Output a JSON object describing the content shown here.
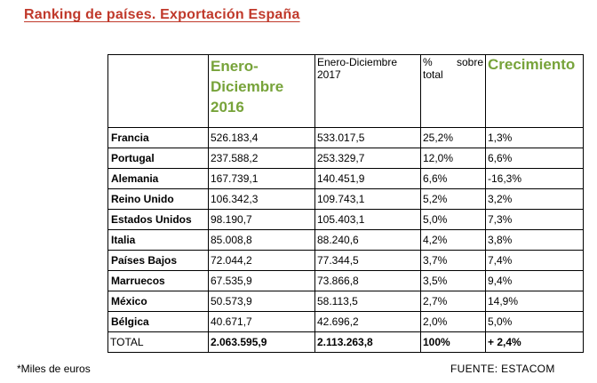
{
  "title": "Ranking de países. Exportación España",
  "headers": {
    "col_2016": "Enero-Diciembre 2016",
    "col_2017": "Enero-Diciembre 2017",
    "col_pct_a": "%",
    "col_pct_b": "sobre",
    "col_pct_c": "total",
    "col_growth": "Crecimiento"
  },
  "rows": [
    {
      "country": "Francia",
      "v2016": "526.183,4",
      "v2017": "533.017,5",
      "pct": "25,2%",
      "growth": "1,3%"
    },
    {
      "country": "Portugal",
      "v2016": "237.588,2",
      "v2017": "253.329,7",
      "pct": "12,0%",
      "growth": "6,6%"
    },
    {
      "country": "Alemania",
      "v2016": "167.739,1",
      "v2017": "140.451,9",
      "pct": "6,6%",
      "growth": "-16,3%"
    },
    {
      "country": "Reino Unido",
      "v2016": "106.342,3",
      "v2017": "109.743,1",
      "pct": "5,2%",
      "growth": "3,2%"
    },
    {
      "country": "Estados Unidos",
      "v2016": "98.190,7",
      "v2017": "105.403,1",
      "pct": "5,0%",
      "growth": "7,3%"
    },
    {
      "country": "Italia",
      "v2016": "85.008,8",
      "v2017": "88.240,6",
      "pct": "4,2%",
      "growth": "3,8%"
    },
    {
      "country": "Países Bajos",
      "v2016": "72.044,2",
      "v2017": "77.344,5",
      "pct": "3,7%",
      "growth": "7,4%"
    },
    {
      "country": "Marruecos",
      "v2016": "67.535,9",
      "v2017": "73.866,8",
      "pct": "3,5%",
      "growth": "9,4%"
    },
    {
      "country": "México",
      "v2016": "50.573,9",
      "v2017": "58.113,5",
      "pct": "2,7%",
      "growth": "14,9%"
    },
    {
      "country": "Bélgica",
      "v2016": "40.671,7",
      "v2017": "42.696,2",
      "pct": "2,0%",
      "growth": "5,0%"
    }
  ],
  "total": {
    "label": "TOTAL",
    "v2016": "2.063.595,9",
    "v2017": "2.113.263,8",
    "pct": "100%",
    "growth": "+ 2,4%"
  },
  "footnote": "*Miles de euros",
  "source": "FUENTE: ESTACOM",
  "colors": {
    "title": "#c0392b",
    "header_green": "#77a33a"
  }
}
